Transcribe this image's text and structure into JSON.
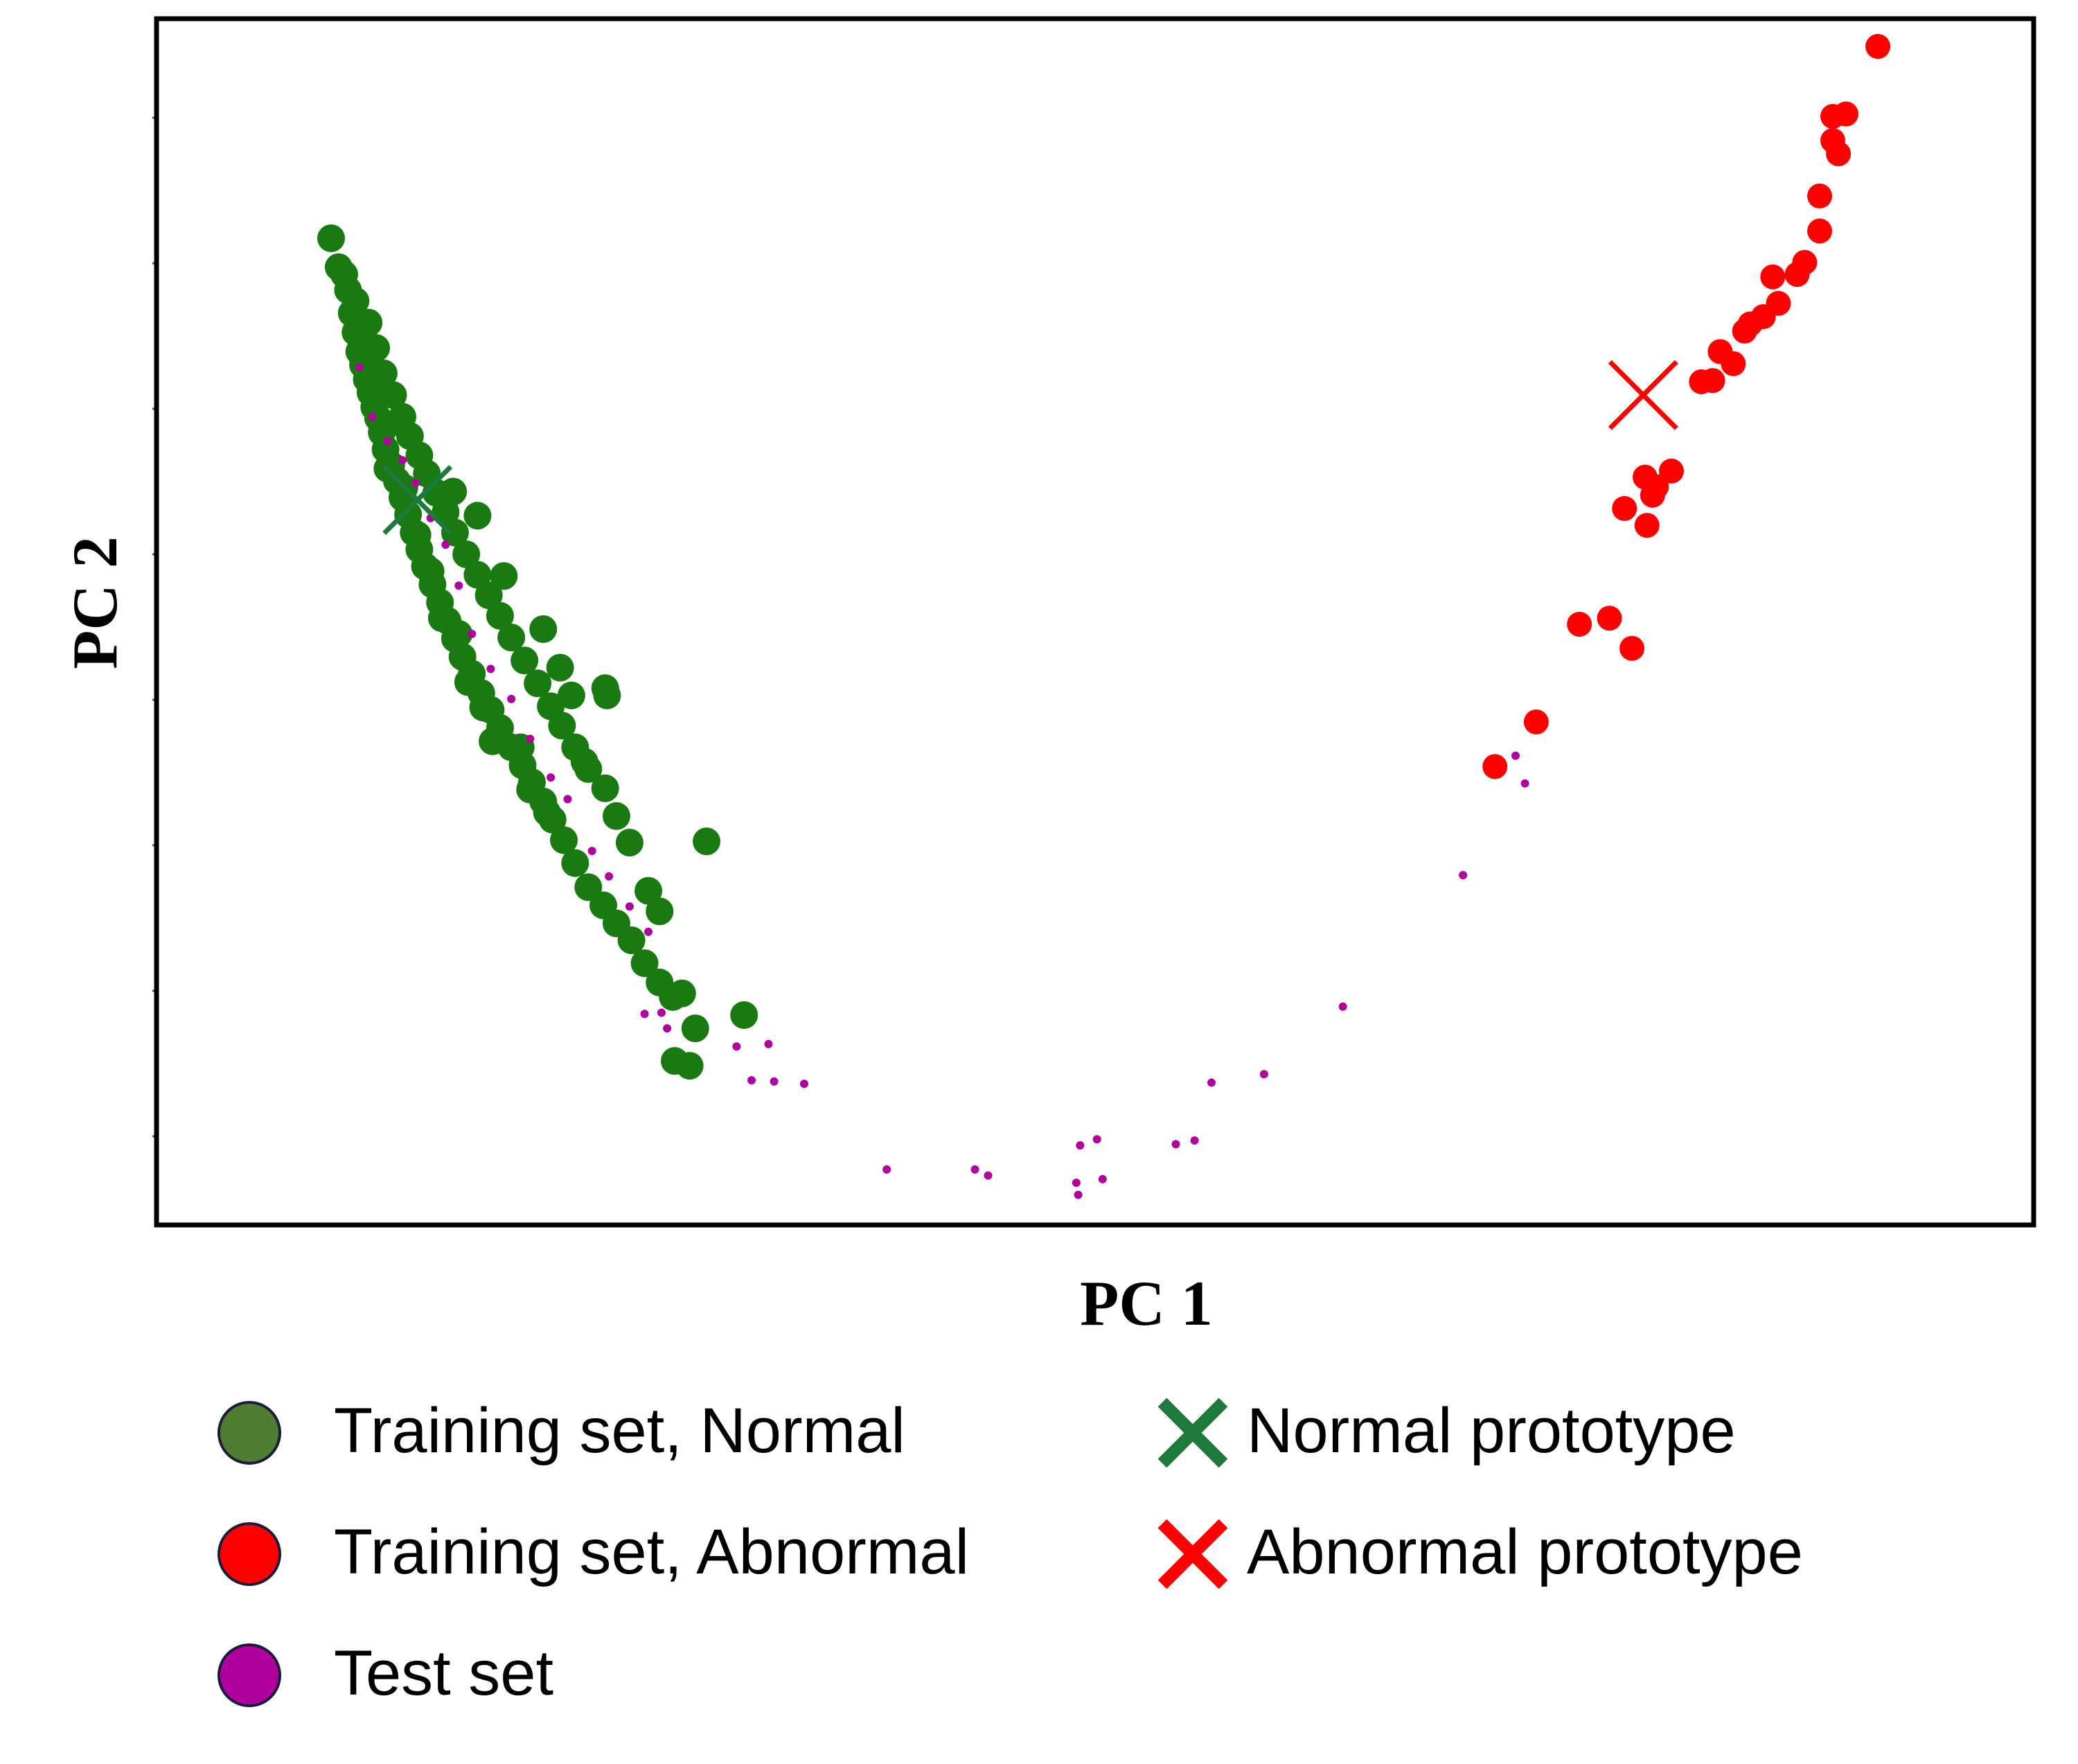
{
  "chart_data": {
    "type": "scatter",
    "title": "",
    "xlabel": "PC 1",
    "ylabel": "PC 2",
    "xlim": [
      0,
      100
    ],
    "ylim": [
      0,
      100
    ],
    "grid": false,
    "legend_position": "bottom",
    "series": [
      {
        "name": "Training set, Normal",
        "color": "#1a7a12",
        "legend_color": "#4e7d32",
        "marker": "circle",
        "points": [
          [
            9.3,
            81.8
          ],
          [
            9.7,
            79.4
          ],
          [
            10.0,
            78.8
          ],
          [
            10.2,
            77.5
          ],
          [
            10.4,
            75.6
          ],
          [
            10.6,
            74.0
          ],
          [
            10.8,
            72.4
          ],
          [
            11.0,
            71.3
          ],
          [
            11.2,
            70.1
          ],
          [
            11.4,
            69.0
          ],
          [
            11.6,
            67.8
          ],
          [
            11.8,
            66.9
          ],
          [
            12.0,
            65.7
          ],
          [
            12.2,
            64.3
          ],
          [
            12.5,
            63.0
          ],
          [
            12.8,
            61.7
          ],
          [
            13.1,
            60.3
          ],
          [
            13.4,
            58.9
          ],
          [
            13.7,
            57.4
          ],
          [
            14.0,
            56.0
          ],
          [
            14.3,
            54.6
          ],
          [
            14.7,
            53.1
          ],
          [
            15.1,
            51.6
          ],
          [
            15.5,
            50.1
          ],
          [
            15.9,
            48.6
          ],
          [
            16.3,
            47.1
          ],
          [
            16.8,
            45.7
          ],
          [
            17.3,
            44.1
          ],
          [
            17.8,
            42.7
          ],
          [
            18.3,
            41.2
          ],
          [
            18.9,
            39.6
          ],
          [
            19.5,
            38.1
          ],
          [
            20.0,
            36.7
          ],
          [
            20.6,
            35.1
          ],
          [
            21.1,
            33.6
          ],
          [
            21.7,
            31.9
          ],
          [
            22.3,
            30.0
          ],
          [
            23.0,
            28.0
          ],
          [
            23.8,
            26.5
          ],
          [
            24.5,
            25.0
          ],
          [
            25.3,
            23.6
          ],
          [
            26.0,
            21.7
          ],
          [
            26.8,
            20.1
          ],
          [
            27.5,
            18.9
          ],
          [
            11.3,
            74.8
          ],
          [
            11.7,
            72.7
          ],
          [
            12.1,
            70.6
          ],
          [
            12.6,
            68.8
          ],
          [
            13.1,
            67.0
          ],
          [
            13.5,
            65.4
          ],
          [
            14.0,
            63.8
          ],
          [
            14.4,
            62.3
          ],
          [
            14.9,
            60.7
          ],
          [
            15.4,
            59.1
          ],
          [
            15.9,
            57.4
          ],
          [
            16.5,
            55.6
          ],
          [
            17.1,
            53.9
          ],
          [
            17.7,
            52.2
          ],
          [
            18.3,
            50.5
          ],
          [
            18.9,
            48.7
          ],
          [
            19.6,
            46.8
          ],
          [
            20.3,
            44.9
          ],
          [
            21.0,
            43.0
          ],
          [
            21.6,
            41.4
          ],
          [
            22.3,
            39.6
          ],
          [
            23.0,
            37.8
          ],
          [
            10.6,
            76.6
          ],
          [
            11.5,
            70.4
          ],
          [
            12.2,
            66.2
          ],
          [
            12.3,
            62.7
          ],
          [
            13.2,
            61.1
          ],
          [
            13.9,
            57.2
          ],
          [
            14.6,
            54.2
          ],
          [
            15.2,
            50.3
          ],
          [
            16.1,
            49.0
          ],
          [
            16.6,
            45.0
          ],
          [
            17.4,
            42.9
          ],
          [
            17.9,
            40.1
          ],
          [
            19.4,
            39.6
          ],
          [
            19.9,
            36.1
          ],
          [
            20.8,
            34.2
          ],
          [
            15.8,
            60.8
          ],
          [
            17.1,
            58.8
          ],
          [
            18.5,
            53.8
          ],
          [
            20.6,
            49.4
          ],
          [
            21.5,
            46.2
          ],
          [
            22.1,
            43.9
          ],
          [
            24.0,
            43.9
          ],
          [
            23.9,
            44.5
          ],
          [
            22.8,
            38.4
          ],
          [
            23.9,
            36.2
          ],
          [
            24.5,
            33.9
          ],
          [
            25.2,
            31.7
          ],
          [
            26.2,
            27.7
          ],
          [
            26.8,
            26.0
          ],
          [
            29.3,
            31.8
          ],
          [
            28.0,
            19.2
          ],
          [
            28.7,
            16.3
          ],
          [
            31.3,
            17.4
          ],
          [
            27.6,
            13.6
          ],
          [
            28.4,
            13.2
          ]
        ]
      },
      {
        "name": "Training set, Abnormal",
        "color": "#ff0000",
        "legend_color": "#ff0000",
        "marker": "circle",
        "points": [
          [
            91.7,
            97.7
          ],
          [
            90.0,
            92.1
          ],
          [
            89.3,
            91.9
          ],
          [
            89.3,
            89.9
          ],
          [
            89.6,
            88.8
          ],
          [
            88.6,
            85.3
          ],
          [
            88.6,
            82.4
          ],
          [
            87.8,
            79.8
          ],
          [
            87.4,
            78.8
          ],
          [
            86.1,
            78.6
          ],
          [
            86.4,
            76.4
          ],
          [
            85.6,
            75.3
          ],
          [
            84.9,
            74.7
          ],
          [
            84.6,
            74.1
          ],
          [
            84.0,
            71.4
          ],
          [
            83.3,
            72.4
          ],
          [
            82.9,
            70.0
          ],
          [
            82.3,
            69.9
          ],
          [
            79.3,
            62.0
          ],
          [
            80.7,
            62.5
          ],
          [
            79.9,
            61.2
          ],
          [
            79.7,
            60.5
          ],
          [
            78.2,
            59.4
          ],
          [
            79.4,
            58.0
          ],
          [
            78.6,
            47.8
          ],
          [
            75.8,
            49.8
          ],
          [
            73.5,
            41.7
          ],
          [
            71.3,
            38.0
          ],
          [
            77.4,
            50.3
          ]
        ]
      },
      {
        "name": "Test set",
        "color": "#b0009e",
        "legend_color": "#b0009e",
        "marker": "circle",
        "points": [
          [
            49.1,
            2.5
          ],
          [
            49.0,
            3.5
          ],
          [
            49.2,
            6.6
          ],
          [
            50.1,
            7.1
          ],
          [
            50.4,
            3.8
          ],
          [
            54.3,
            6.7
          ],
          [
            55.3,
            7.0
          ],
          [
            56.2,
            11.8
          ],
          [
            59.0,
            12.5
          ],
          [
            63.2,
            18.1
          ],
          [
            69.6,
            29.0
          ],
          [
            72.9,
            36.6
          ],
          [
            72.4,
            38.9
          ],
          [
            30.9,
            14.8
          ],
          [
            31.7,
            12.0
          ],
          [
            32.9,
            11.9
          ],
          [
            34.5,
            11.7
          ],
          [
            38.9,
            4.6
          ],
          [
            43.6,
            4.6
          ],
          [
            44.3,
            4.1
          ],
          [
            26.0,
            17.5
          ],
          [
            26.9,
            17.6
          ],
          [
            32.6,
            15.0
          ],
          [
            27.2,
            16.3
          ],
          [
            10.8,
            71.1
          ],
          [
            11.5,
            67.0
          ],
          [
            12.3,
            65.0
          ],
          [
            13.1,
            63.4
          ],
          [
            13.8,
            61.5
          ],
          [
            14.6,
            58.6
          ],
          [
            15.4,
            56.4
          ],
          [
            16.1,
            53.0
          ],
          [
            16.8,
            49.0
          ],
          [
            17.8,
            46.1
          ],
          [
            18.9,
            43.6
          ],
          [
            19.9,
            40.3
          ],
          [
            21.0,
            37.1
          ],
          [
            21.9,
            35.3
          ],
          [
            23.2,
            31.0
          ],
          [
            24.1,
            28.9
          ],
          [
            25.2,
            26.4
          ],
          [
            26.2,
            24.3
          ]
        ]
      }
    ],
    "prototypes": [
      {
        "name": "Normal prototype",
        "color": "#1e7a3c",
        "marker": "cross",
        "point": [
          13.9,
          60.1
        ]
      },
      {
        "name": "Abnormal prototype",
        "color": "#ff0000",
        "marker": "cross",
        "point": [
          79.2,
          68.8
        ]
      }
    ],
    "legend": [
      {
        "label": "Training set, Normal",
        "marker": "circle",
        "color": "#4e7d32"
      },
      {
        "label": "Training set, Abnormal",
        "marker": "circle",
        "color": "#ff0000"
      },
      {
        "label": "Test set",
        "marker": "circle",
        "color": "#b0009e"
      },
      {
        "label": "Normal prototype",
        "marker": "cross",
        "color": "#1e7a3c"
      },
      {
        "label": "Abnormal prototype",
        "marker": "cross",
        "color": "#ff0000"
      }
    ]
  }
}
